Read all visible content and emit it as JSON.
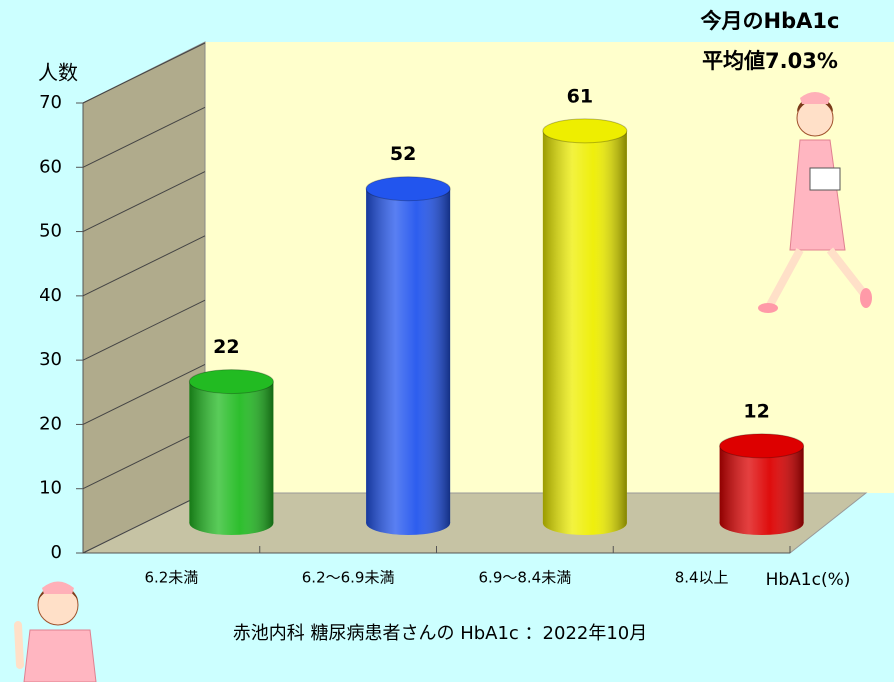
{
  "chart_data": {
    "type": "bar",
    "y_label": "人数",
    "x_label": "HbA1c(%)",
    "caption": "赤池内科 糖尿病患者さんの HbA1c ：2022年10月",
    "annotations": [
      "今月のHbA1c",
      "平均値7.03%"
    ],
    "categories": [
      "6.2未満",
      "6.2〜6.9未満",
      "6.9〜8.4未満",
      "8.4以上"
    ],
    "values": [
      22,
      52,
      61,
      12
    ],
    "colors": [
      "#22bb22",
      "#2255ee",
      "#eeee00",
      "#dd0000"
    ],
    "ylim": [
      0,
      70
    ],
    "yticks": [
      0,
      10,
      20,
      30,
      40,
      50,
      60,
      70
    ],
    "grid": true
  }
}
